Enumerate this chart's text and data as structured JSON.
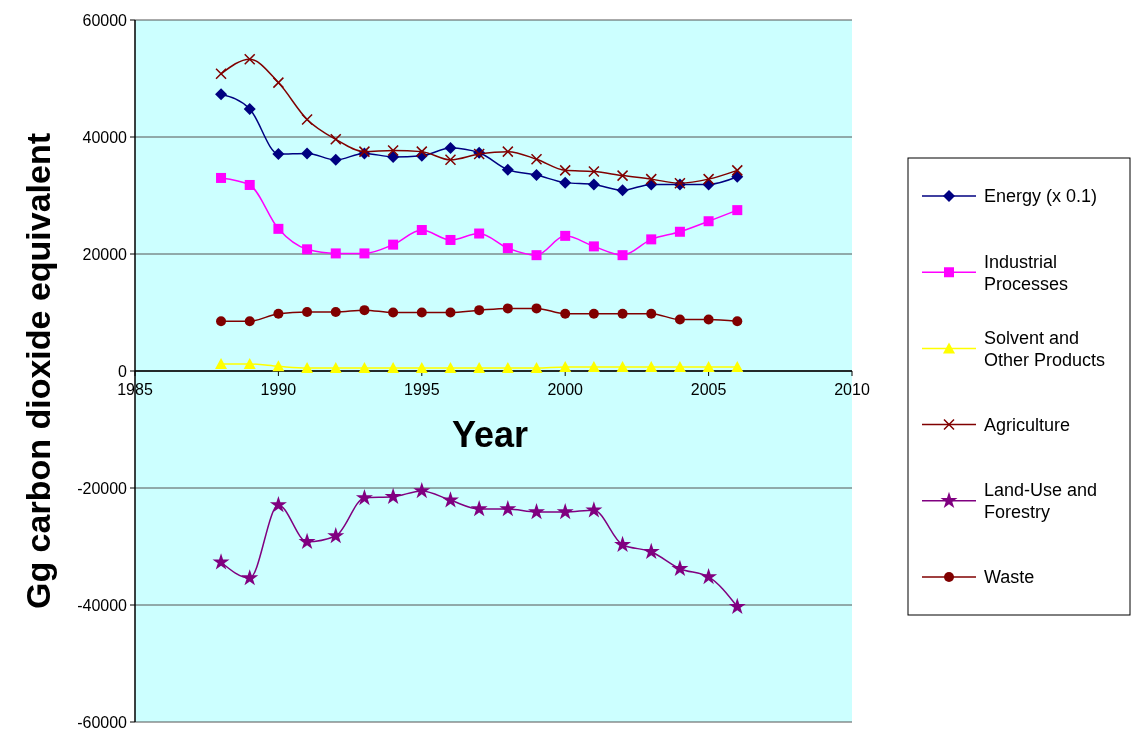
{
  "chart_data": {
    "type": "line",
    "xlabel": "Year",
    "ylabel": "Gg carbon dioxide equivalent",
    "x": [
      1988,
      1989,
      1990,
      1991,
      1992,
      1993,
      1994,
      1995,
      1996,
      1997,
      1998,
      1999,
      2000,
      2001,
      2002,
      2003,
      2004,
      2005,
      2006
    ],
    "xlim": [
      1985,
      2010
    ],
    "xticks": [
      1985,
      1990,
      1995,
      2000,
      2005,
      2010
    ],
    "ylim": [
      -60000,
      60000
    ],
    "yticks": [
      -60000,
      -40000,
      -20000,
      0,
      20000,
      40000,
      60000
    ],
    "grid": "y",
    "legend": "right",
    "series": [
      {
        "name": "Energy (x 0.1)",
        "color": "#000080",
        "marker": "diamond",
        "values": [
          47300,
          44800,
          37100,
          37200,
          36100,
          37200,
          36600,
          36800,
          38100,
          37300,
          34400,
          33500,
          32200,
          31900,
          30900,
          31900,
          31900,
          31900,
          33200
        ]
      },
      {
        "name": "Industrial Processes",
        "color": "#ff00ff",
        "marker": "square",
        "values": [
          33000,
          31800,
          24300,
          20800,
          20100,
          20100,
          21600,
          24100,
          22400,
          23500,
          21000,
          19800,
          23100,
          21300,
          19800,
          22500,
          23800,
          25600,
          27500
        ]
      },
      {
        "name": "Solvent and Other Products",
        "color": "#ffff00",
        "marker": "triangle",
        "values": [
          1200,
          1200,
          800,
          500,
          500,
          500,
          500,
          500,
          500,
          500,
          500,
          500,
          700,
          700,
          700,
          700,
          700,
          700,
          700
        ]
      },
      {
        "name": "Agriculture",
        "color": "#800000",
        "marker": "cross",
        "values": [
          50800,
          53300,
          49300,
          43000,
          39600,
          37500,
          37700,
          37500,
          36100,
          37100,
          37500,
          36200,
          34300,
          34100,
          33400,
          32800,
          32100,
          32800,
          34300
        ]
      },
      {
        "name": "Land-Use and Forestry",
        "color": "#800080",
        "marker": "star",
        "values": [
          -32700,
          -35400,
          -22900,
          -29200,
          -28200,
          -21700,
          -21500,
          -20500,
          -22100,
          -23600,
          -23600,
          -24100,
          -24100,
          -23800,
          -29700,
          -30900,
          -33800,
          -35200,
          -40300
        ]
      },
      {
        "name": "Waste",
        "color": "#800000",
        "marker": "circle",
        "values": [
          8500,
          8500,
          9800,
          10100,
          10100,
          10400,
          10000,
          10000,
          10000,
          10400,
          10700,
          10700,
          9800,
          9800,
          9800,
          9800,
          8800,
          8800,
          8500
        ]
      }
    ]
  }
}
